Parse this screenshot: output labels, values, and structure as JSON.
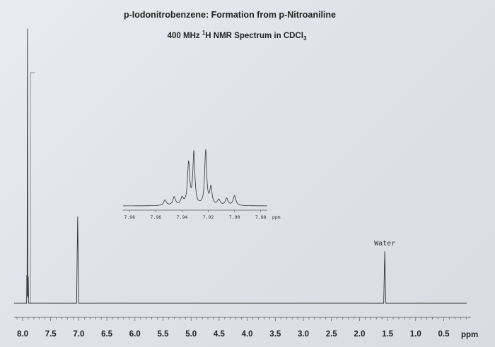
{
  "chart_data": {
    "type": "line",
    "title": "p-Iodonitrobenzene: Formation from p-Nitroaniline",
    "subtitle": {
      "prefix": "400 MHz ",
      "sup": "1",
      "mid": "H NMR Spectrum in CDCl",
      "sub": "3"
    },
    "xlabel": "ppm",
    "xlim": [
      8.0,
      0.0
    ],
    "x_ticks": [
      "8.0",
      "7.5",
      "7.0",
      "6.5",
      "6.0",
      "5.5",
      "5.0",
      "4.5",
      "4.0",
      "3.5",
      "3.0",
      "2.5",
      "2.0",
      "1.5",
      "1.0",
      "0.5"
    ],
    "peaks": [
      {
        "ppm": 7.91,
        "height": 0.95,
        "label": ""
      },
      {
        "ppm": 7.02,
        "height": 0.3,
        "label": ""
      },
      {
        "ppm": 1.55,
        "height": 0.18,
        "label": "Water"
      }
    ],
    "inset": {
      "x_ticks": [
        "7.98",
        "7.96",
        "7.94",
        "7.92",
        "7.90",
        "7.88"
      ],
      "x_unit": "ppm",
      "xlim": [
        7.985,
        7.875
      ]
    }
  }
}
